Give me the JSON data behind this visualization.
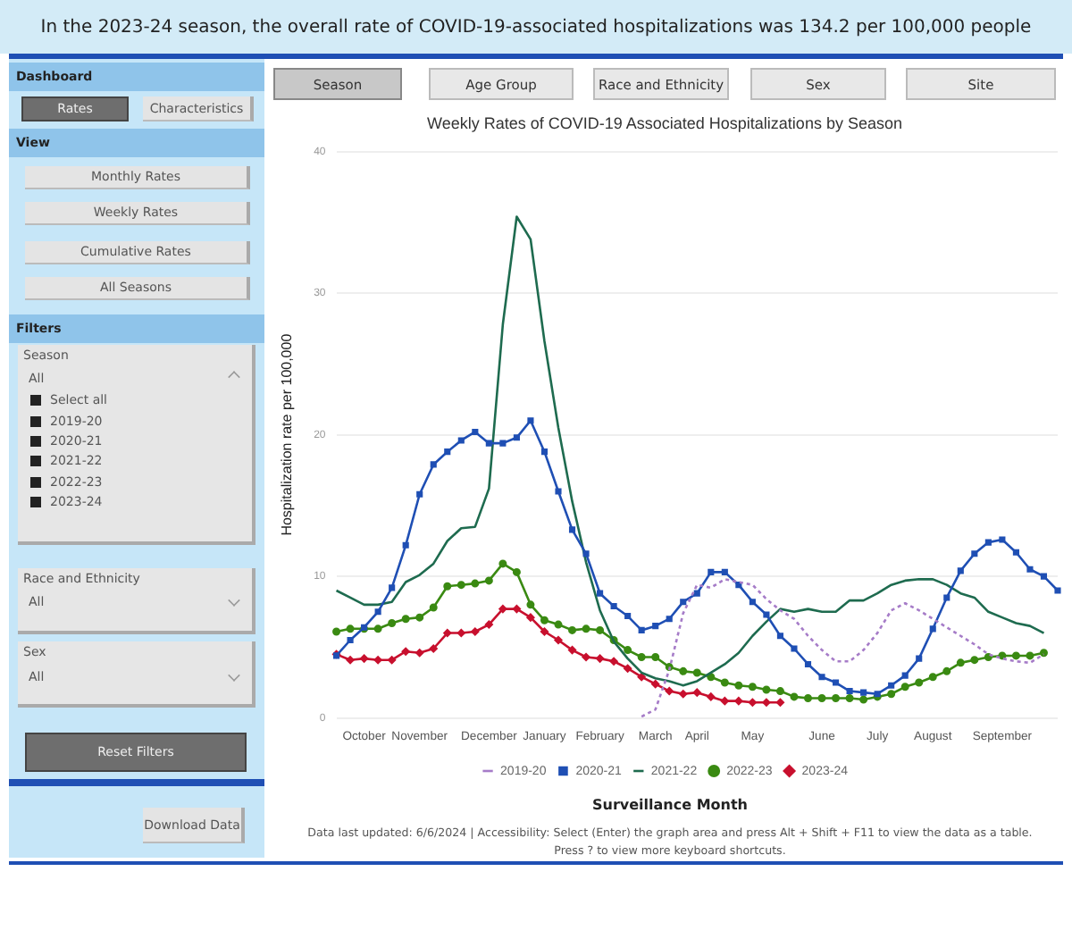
{
  "chart_data": {
    "type": "line",
    "title": "In the 2023-24 season, the overall rate of COVID-19-associated hospitalizations was 134.2 per 100,000 people",
    "subtitle": "Weekly Rates of COVID-19 Associated Hospitalizations by Season",
    "xlabel": "Surveillance Month",
    "ylabel": "Hospitalization rate per 100,000",
    "categories": [
      null,
      null,
      "October",
      null,
      null,
      null,
      "November",
      null,
      null,
      null,
      null,
      "December",
      null,
      null,
      null,
      "January",
      null,
      null,
      null,
      "February",
      null,
      null,
      null,
      "March",
      null,
      null,
      "April",
      null,
      null,
      null,
      "May",
      null,
      null,
      null,
      null,
      "June",
      null,
      null,
      null,
      "July",
      null,
      null,
      null,
      "August",
      null,
      null,
      null,
      null,
      "September",
      null,
      null,
      null,
      null
    ],
    "ylim": [
      0,
      40
    ],
    "yticks": [
      0,
      10,
      20,
      30,
      40
    ],
    "grid": "y",
    "legend": "bottom",
    "series": [
      {
        "name": "2019-20",
        "color": "#a67cc8",
        "marker": "none",
        "line_style": "dotted",
        "values": [
          null,
          null,
          null,
          null,
          null,
          null,
          null,
          null,
          null,
          null,
          null,
          null,
          null,
          null,
          null,
          null,
          null,
          null,
          null,
          null,
          null,
          null,
          0.1,
          0.6,
          3.4,
          7.4,
          9.4,
          9.2,
          9.8,
          9.6,
          9.4,
          8.4,
          7.6,
          7.0,
          5.8,
          4.8,
          4.0,
          4.0,
          4.8,
          6.0,
          7.6,
          8.1,
          7.6,
          7.0,
          6.4,
          5.8,
          5.2,
          4.5,
          4.2,
          4.0,
          3.9,
          4.5,
          null
        ]
      },
      {
        "name": "2020-21",
        "color": "#1f4fb4",
        "marker": "square",
        "line_style": "solid",
        "values": [
          4.4,
          5.5,
          6.4,
          7.5,
          9.2,
          12.2,
          15.8,
          17.9,
          18.8,
          19.6,
          20.2,
          19.4,
          19.4,
          19.8,
          21.0,
          18.8,
          16.0,
          13.3,
          11.6,
          8.8,
          7.9,
          7.2,
          6.2,
          6.5,
          7.0,
          8.2,
          8.8,
          10.3,
          10.3,
          9.4,
          8.2,
          7.3,
          5.8,
          4.9,
          3.8,
          2.9,
          2.5,
          1.9,
          1.8,
          1.7,
          2.3,
          3.0,
          4.2,
          6.3,
          8.5,
          10.4,
          11.6,
          12.4,
          12.6,
          11.7,
          10.5,
          10.0,
          9.0
        ]
      },
      {
        "name": "2021-22",
        "color": "#1e6b4f",
        "marker": "none",
        "line_style": "solid",
        "values": [
          9.0,
          8.5,
          8.0,
          8.0,
          8.2,
          9.6,
          10.1,
          10.9,
          12.5,
          13.4,
          13.5,
          16.2,
          27.8,
          35.4,
          33.8,
          26.6,
          20.5,
          15.3,
          11.0,
          7.6,
          5.4,
          4.2,
          3.2,
          2.8,
          2.6,
          2.3,
          2.6,
          3.2,
          3.8,
          4.6,
          5.8,
          6.8,
          7.7,
          7.5,
          7.7,
          7.5,
          7.5,
          8.3,
          8.3,
          8.8,
          9.4,
          9.7,
          9.8,
          9.8,
          9.4,
          8.8,
          8.5,
          7.5,
          7.1,
          6.7,
          6.5,
          6.0,
          null
        ]
      },
      {
        "name": "2022-23",
        "color": "#3a8a12",
        "marker": "circle",
        "line_style": "solid",
        "values": [
          6.1,
          6.3,
          6.3,
          6.3,
          6.7,
          7.0,
          7.1,
          7.8,
          9.3,
          9.4,
          9.5,
          9.7,
          10.9,
          10.3,
          8.0,
          6.9,
          6.6,
          6.2,
          6.3,
          6.2,
          5.5,
          4.8,
          4.3,
          4.3,
          3.6,
          3.3,
          3.2,
          2.9,
          2.5,
          2.3,
          2.2,
          2.0,
          1.9,
          1.5,
          1.4,
          1.4,
          1.4,
          1.4,
          1.3,
          1.5,
          1.7,
          2.2,
          2.5,
          2.9,
          3.3,
          3.9,
          4.1,
          4.3,
          4.4,
          4.4,
          4.4,
          4.6,
          null
        ]
      },
      {
        "name": "2023-24",
        "color": "#c8102e",
        "marker": "diamond",
        "line_style": "solid",
        "values": [
          4.5,
          4.1,
          4.2,
          4.1,
          4.1,
          4.7,
          4.6,
          4.9,
          6.0,
          6.0,
          6.1,
          6.6,
          7.7,
          7.7,
          7.1,
          6.1,
          5.5,
          4.8,
          4.3,
          4.2,
          4.0,
          3.5,
          2.9,
          2.4,
          1.9,
          1.7,
          1.8,
          1.5,
          1.2,
          1.2,
          1.1,
          1.1,
          1.1,
          null,
          null,
          null,
          null,
          null,
          null,
          null,
          null,
          null,
          null,
          null,
          null,
          null,
          null,
          null,
          null,
          null,
          null,
          null,
          null
        ]
      }
    ],
    "annotations": [
      "Dashboard",
      "Rates",
      "Characteristics",
      "View",
      "Monthly Rates",
      "Weekly Rates",
      "Cumulative Rates",
      "All Seasons",
      "Filters",
      "Season",
      "All",
      "Select all",
      "2019-20",
      "2020-21",
      "2021-22",
      "2022-23",
      "2023-24",
      "Race and Ethnicity",
      "All",
      "Sex",
      "All",
      "Reset Filters",
      "Download Data",
      "Season",
      "Age Group",
      "Race and Ethnicity",
      "Sex",
      "Site",
      "Data last updated: 6/6/2024 | Accessibility: Select (Enter) the graph area and press Alt + Shift + F11 to view the data as a table.",
      "Press ? to view more keyboard shortcuts."
    ]
  }
}
